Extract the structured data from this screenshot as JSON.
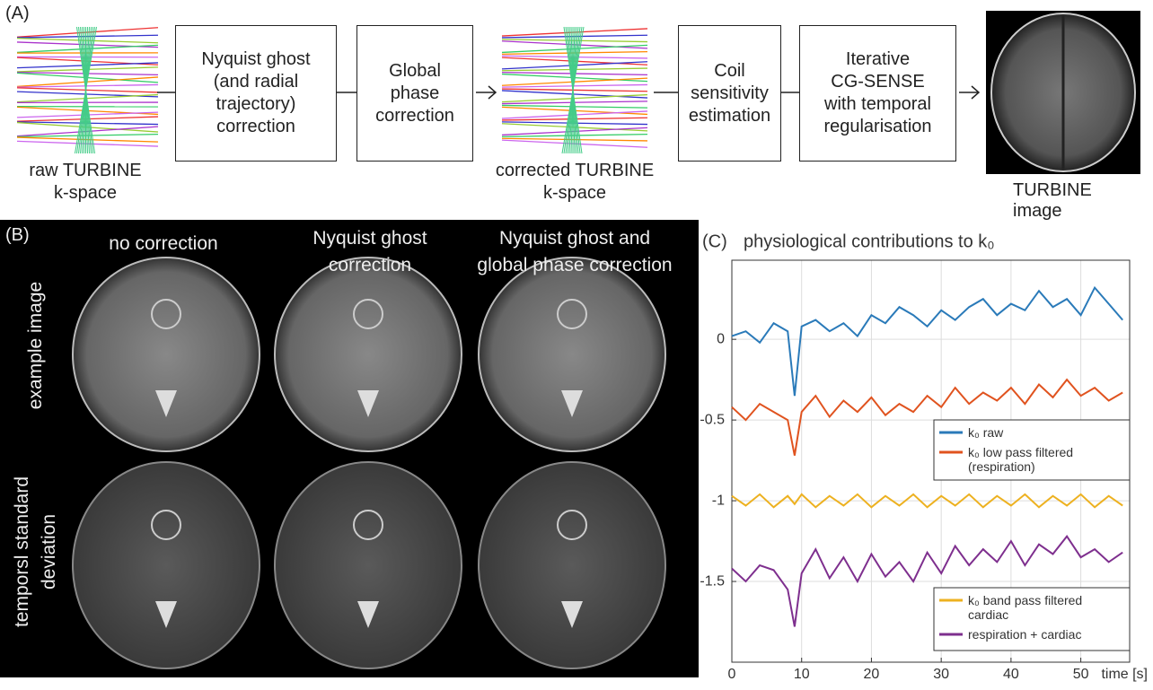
{
  "panel_a": {
    "label": "(A)",
    "raw_label": [
      "raw TURBINE",
      "k-space"
    ],
    "steps": [
      [
        "Nyquist ghost",
        "(and radial",
        "trajectory)",
        "correction"
      ],
      [
        "Global",
        "phase",
        "correction"
      ],
      [
        "Coil",
        "sensitivity",
        "estimation"
      ],
      [
        "Iterative",
        "CG-SENSE",
        "with temporal",
        "regularisation"
      ]
    ],
    "corrected_label": [
      "corrected TURBINE",
      "k-space"
    ],
    "image_label": "TURBINE image"
  },
  "panel_b": {
    "label": "(B)",
    "columns": [
      [
        "no correction"
      ],
      [
        "Nyquist ghost",
        "correction"
      ],
      [
        "Nyquist ghost and",
        "global phase correction"
      ]
    ],
    "rows": [
      [
        "example image"
      ],
      [
        "temporsl standard",
        "deviation"
      ]
    ]
  },
  "chart_data": {
    "type": "line",
    "label": "(C)",
    "title": "physiological contributions to k₀",
    "x_label": "time [s]",
    "x": [
      0,
      2,
      4,
      6,
      8,
      9,
      10,
      12,
      14,
      16,
      18,
      20,
      22,
      24,
      26,
      28,
      30,
      32,
      34,
      36,
      38,
      40,
      42,
      44,
      46,
      48,
      50,
      52,
      54,
      56
    ],
    "series": [
      {
        "name": "k₀ raw",
        "color": "#2a7ab9",
        "values": [
          0.02,
          0.05,
          -0.02,
          0.1,
          0.05,
          -0.35,
          0.08,
          0.12,
          0.05,
          0.1,
          0.02,
          0.15,
          0.1,
          0.2,
          0.15,
          0.08,
          0.18,
          0.12,
          0.2,
          0.25,
          0.15,
          0.22,
          0.18,
          0.3,
          0.2,
          0.25,
          0.15,
          0.32,
          0.22,
          0.12
        ]
      },
      {
        "name": "k₀ low pass filtered (respiration)",
        "color": "#e0531f",
        "values": [
          -0.42,
          -0.5,
          -0.4,
          -0.45,
          -0.5,
          -0.72,
          -0.45,
          -0.35,
          -0.48,
          -0.38,
          -0.45,
          -0.36,
          -0.47,
          -0.4,
          -0.45,
          -0.35,
          -0.42,
          -0.3,
          -0.4,
          -0.33,
          -0.38,
          -0.3,
          -0.4,
          -0.28,
          -0.36,
          -0.25,
          -0.35,
          -0.3,
          -0.38,
          -0.33
        ]
      },
      {
        "name": "k₀ band pass filtered cardiac",
        "color": "#edb120",
        "values": [
          -0.97,
          -1.03,
          -0.96,
          -1.04,
          -0.97,
          -1.02,
          -0.96,
          -1.04,
          -0.97,
          -1.03,
          -0.96,
          -1.04,
          -0.97,
          -1.03,
          -0.96,
          -1.04,
          -0.97,
          -1.03,
          -0.96,
          -1.04,
          -0.97,
          -1.03,
          -0.96,
          -1.04,
          -0.97,
          -1.03,
          -0.96,
          -1.04,
          -0.97,
          -1.03
        ]
      },
      {
        "name": "respiration + cardiac",
        "color": "#7e2f8e",
        "values": [
          -1.42,
          -1.5,
          -1.4,
          -1.43,
          -1.55,
          -1.78,
          -1.45,
          -1.3,
          -1.48,
          -1.35,
          -1.5,
          -1.33,
          -1.47,
          -1.38,
          -1.5,
          -1.32,
          -1.45,
          -1.28,
          -1.4,
          -1.3,
          -1.38,
          -1.25,
          -1.4,
          -1.27,
          -1.33,
          -1.22,
          -1.35,
          -1.3,
          -1.38,
          -1.32
        ]
      }
    ],
    "xlim": [
      0,
      57
    ],
    "ylim": [
      -2,
      0.49
    ],
    "xticks": [
      0,
      10,
      20,
      30,
      40,
      50
    ],
    "yticks": [
      -1.5,
      -1,
      -0.5,
      0
    ],
    "grid": true
  }
}
